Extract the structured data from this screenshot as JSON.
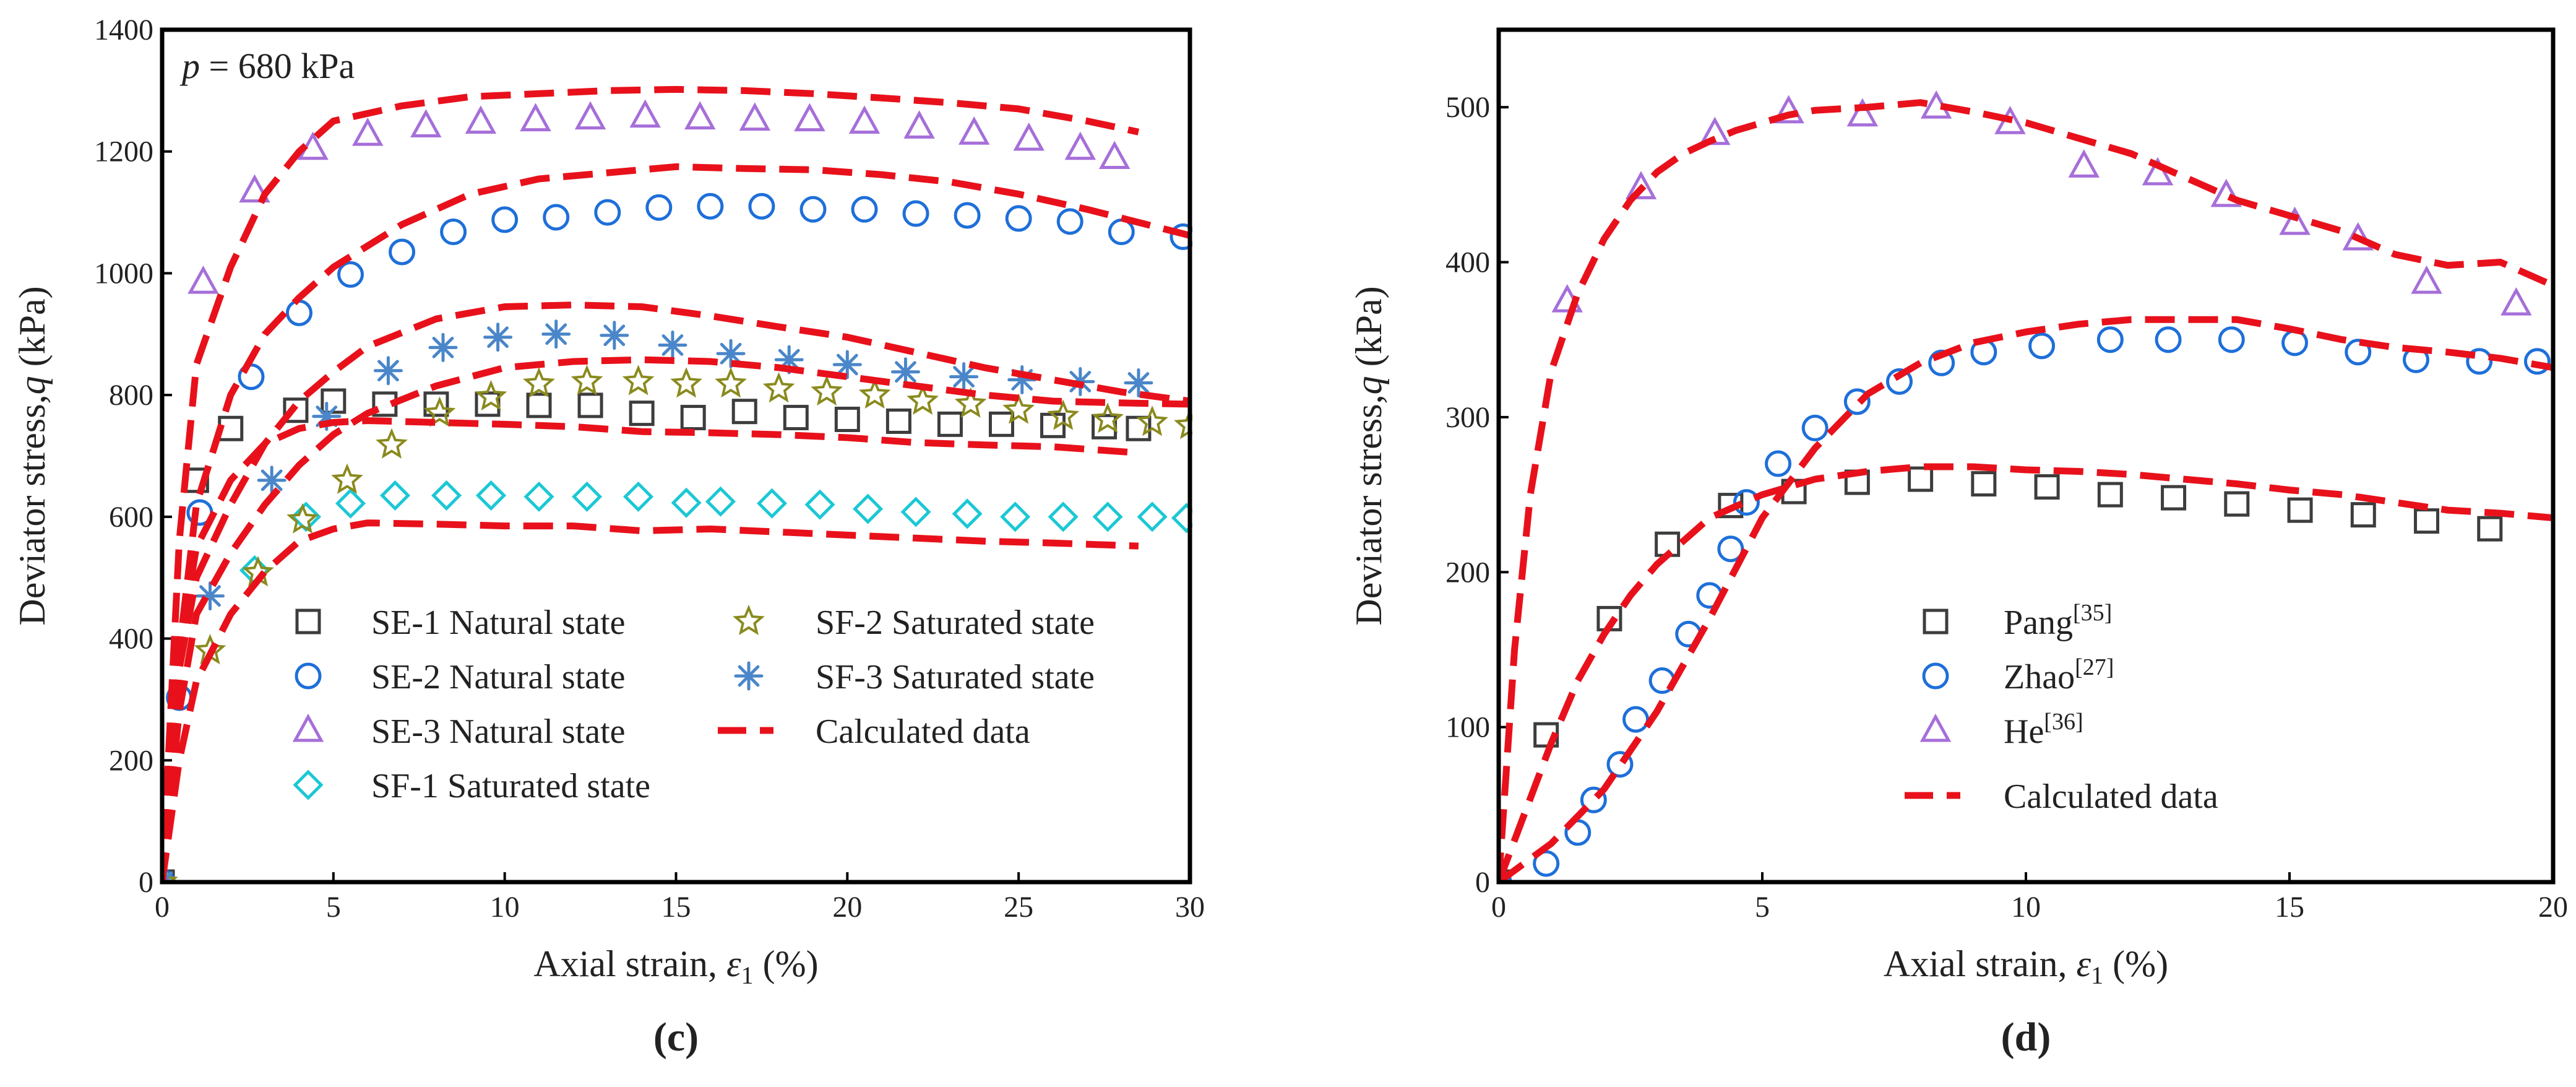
{
  "chart_data": [
    {
      "panel": "c",
      "type": "scatter",
      "panel_label": "(c)",
      "annotation": {
        "italic": "p",
        "text": " = 680 kPa"
      },
      "xlabel": {
        "text": "Axial strain, ",
        "symbol": "ε",
        "sub": "1",
        "unit": " (%)"
      },
      "ylabel": {
        "text": "Deviator stress,",
        "symbol": "q",
        "unit": " (kPa)"
      },
      "xlim": [
        0,
        30
      ],
      "ylim": [
        0,
        1400
      ],
      "xticks": [
        0,
        5,
        10,
        15,
        20,
        25,
        30
      ],
      "yticks": [
        0,
        200,
        400,
        600,
        800,
        1000,
        1200,
        1400
      ],
      "series": [
        {
          "name": "SE-1 Natural state",
          "marker": "square",
          "color": "#3d3d3d",
          "x": [
            0,
            1,
            2,
            3.9,
            5,
            6.5,
            8,
            9.5,
            11,
            12.5,
            14,
            15.5,
            17,
            18.5,
            20,
            21.5,
            23,
            24.5,
            26,
            27.5,
            28.5
          ],
          "y": [
            0,
            660,
            745,
            775,
            790,
            785,
            785,
            785,
            783,
            783,
            770,
            763,
            773,
            763,
            760,
            757,
            752,
            752,
            750,
            748,
            745
          ]
        },
        {
          "name": "SE-2 Natural state",
          "marker": "circle",
          "color": "#1e6fd9",
          "x": [
            0,
            0.5,
            1.1,
            2.6,
            4,
            5.5,
            7,
            8.5,
            10,
            11.5,
            13,
            14.5,
            16,
            17.5,
            19,
            20.5,
            22,
            23.5,
            25,
            26.5,
            28,
            29.8
          ],
          "y": [
            0,
            303,
            607,
            830,
            935,
            998,
            1035,
            1068,
            1088,
            1092,
            1100,
            1108,
            1110,
            1110,
            1105,
            1105,
            1098,
            1095,
            1090,
            1085,
            1068,
            1060
          ]
        },
        {
          "name": "SE-3 Natural state",
          "marker": "triangle",
          "color": "#a66fd9",
          "x": [
            0,
            1.2,
            2.7,
            4.4,
            6,
            7.7,
            9.3,
            10.9,
            12.5,
            14.1,
            15.7,
            17.3,
            18.9,
            20.5,
            22.1,
            23.7,
            25.3,
            26.8,
            27.8
          ],
          "y": [
            0,
            985,
            1135,
            1205,
            1228,
            1242,
            1248,
            1252,
            1255,
            1258,
            1255,
            1253,
            1252,
            1248,
            1240,
            1230,
            1220,
            1205,
            1190
          ]
        },
        {
          "name": "SF-1 Saturated state",
          "marker": "diamond",
          "color": "#1ac8d4",
          "x": [
            0,
            2.7,
            4.2,
            5.5,
            6.8,
            8.3,
            9.6,
            11,
            12.4,
            13.9,
            15.3,
            16.3,
            17.8,
            19.2,
            20.6,
            22,
            23.5,
            24.9,
            26.3,
            27.6,
            28.9,
            29.9
          ],
          "y": [
            0,
            512,
            600,
            622,
            635,
            635,
            635,
            633,
            633,
            633,
            623,
            625,
            622,
            620,
            613,
            608,
            605,
            600,
            600,
            600,
            600,
            598
          ]
        },
        {
          "name": "SF-2 Saturated state",
          "marker": "star",
          "color": "#8a8a1e",
          "x": [
            0,
            1.4,
            2.8,
            4.1,
            5.4,
            6.7,
            8.1,
            9.6,
            11,
            12.4,
            13.9,
            15.3,
            16.6,
            18,
            19.4,
            20.8,
            22.2,
            23.6,
            25,
            26.3,
            27.6,
            28.9,
            30
          ],
          "y": [
            0,
            380,
            508,
            595,
            660,
            718,
            770,
            797,
            818,
            822,
            822,
            818,
            818,
            810,
            805,
            800,
            790,
            785,
            775,
            765,
            760,
            755,
            750
          ]
        },
        {
          "name": "SF-3 Saturated state",
          "marker": "asterisk",
          "color": "#4a86c9",
          "x": [
            0,
            1.4,
            3.2,
            4.8,
            6.6,
            8.2,
            9.8,
            11.5,
            13.2,
            14.9,
            16.6,
            18.3,
            20,
            21.7,
            23.4,
            25.1,
            26.8,
            28.5
          ],
          "y": [
            0,
            470,
            660,
            765,
            840,
            878,
            895,
            900,
            898,
            882,
            868,
            858,
            850,
            838,
            830,
            825,
            822,
            820
          ]
        },
        {
          "name": "Calculated data",
          "type": "line",
          "style": "dashed",
          "color": "#e8111b",
          "curves": [
            {
              "x": [
                0,
                0.5,
                1,
                2,
                3,
                4,
                5,
                7,
                9,
                11,
                13,
                15,
                17,
                19,
                21,
                23,
                25,
                27,
                28.5
              ],
              "y": [
                0,
                560,
                850,
                1010,
                1130,
                1200,
                1250,
                1275,
                1290,
                1295,
                1300,
                1302,
                1300,
                1295,
                1288,
                1280,
                1270,
                1250,
                1232
              ]
            },
            {
              "x": [
                0,
                0.5,
                1,
                2,
                3,
                4,
                5,
                7,
                9,
                11,
                13,
                15,
                17,
                19,
                21,
                23,
                25,
                27,
                30
              ],
              "y": [
                0,
                380,
                620,
                800,
                900,
                960,
                1010,
                1080,
                1130,
                1155,
                1165,
                1175,
                1172,
                1170,
                1162,
                1150,
                1130,
                1105,
                1062
              ]
            },
            {
              "x": [
                0,
                0.5,
                1,
                2,
                3,
                4,
                5,
                6,
                8,
                10,
                12,
                14,
                16,
                18,
                20,
                22,
                24,
                26,
                28,
                30
              ],
              "y": [
                0,
                350,
                500,
                620,
                720,
                790,
                838,
                880,
                925,
                945,
                948,
                945,
                930,
                912,
                895,
                870,
                845,
                825,
                805,
                790
              ]
            },
            {
              "x": [
                0,
                0.5,
                1,
                2,
                3,
                4,
                5,
                6,
                8,
                10,
                12,
                14,
                16,
                18,
                20,
                22,
                24,
                26,
                28,
                30
              ],
              "y": [
                0,
                280,
                440,
                540,
                620,
                685,
                735,
                770,
                815,
                845,
                855,
                858,
                855,
                845,
                830,
                815,
                800,
                790,
                787,
                785
              ]
            },
            {
              "x": [
                0,
                0.5,
                1,
                2,
                3,
                4,
                5,
                6,
                8,
                10,
                12,
                14,
                16,
                18,
                20,
                22,
                24,
                26,
                28.5
              ],
              "y": [
                0,
                380,
                550,
                660,
                720,
                745,
                755,
                758,
                755,
                752,
                748,
                740,
                738,
                735,
                730,
                722,
                718,
                715,
                705
              ]
            },
            {
              "x": [
                0,
                0.5,
                1,
                2,
                3,
                4,
                5,
                6,
                8,
                10,
                12,
                14,
                16,
                18,
                20,
                22,
                24,
                26,
                28.5
              ],
              "y": [
                0,
                200,
                330,
                440,
                510,
                560,
                580,
                590,
                588,
                585,
                585,
                577,
                580,
                575,
                570,
                565,
                560,
                557,
                552
              ]
            }
          ]
        }
      ],
      "legend": {
        "placement": "bottom-center",
        "columns": 2
      }
    },
    {
      "panel": "d",
      "type": "scatter",
      "panel_label": "(d)",
      "xlabel": {
        "text": "Axial strain, ",
        "symbol": "ε",
        "sub": "1",
        "unit": " (%)"
      },
      "ylabel": {
        "text": "Deviator stress,",
        "symbol": "q",
        "unit": " (kPa)"
      },
      "xlim": [
        0,
        20
      ],
      "ylim": [
        0,
        550
      ],
      "xticks": [
        0,
        5,
        10,
        15,
        20
      ],
      "yticks": [
        0,
        100,
        200,
        300,
        400,
        500
      ],
      "series": [
        {
          "name": "Pang",
          "sup": "[35]",
          "marker": "square",
          "color": "#3d3d3d",
          "x": [
            0,
            0.9,
            2.1,
            3.2,
            4.4,
            5.6,
            6.8,
            8,
            9.2,
            10.4,
            11.6,
            12.8,
            14,
            15.2,
            16.4,
            17.6,
            18.8
          ],
          "y": [
            0,
            95,
            170,
            218,
            243,
            252,
            258,
            260,
            257,
            255,
            250,
            248,
            244,
            240,
            237,
            233,
            228
          ]
        },
        {
          "name": "Zhao",
          "sup": "[27]",
          "marker": "circle",
          "color": "#1e6fd9",
          "x": [
            0,
            0.9,
            1.5,
            1.8,
            2.3,
            2.6,
            3.1,
            3.6,
            4.0,
            4.4,
            4.7,
            5.3,
            6.0,
            6.8,
            7.6,
            8.4,
            9.2,
            10.3,
            11.6,
            12.7,
            13.9,
            15.1,
            16.3,
            17.4,
            18.6,
            19.7
          ],
          "y": [
            0,
            12,
            32,
            53,
            76,
            105,
            130,
            160,
            185,
            215,
            245,
            270,
            293,
            310,
            323,
            335,
            342,
            346,
            350,
            350,
            350,
            348,
            342,
            337,
            336,
            336
          ]
        },
        {
          "name": "He",
          "sup": "[36]",
          "marker": "triangle",
          "color": "#a66fd9",
          "x": [
            0,
            1.3,
            2.7,
            4.1,
            5.5,
            6.9,
            8.3,
            9.7,
            11.1,
            12.5,
            13.8,
            15.1,
            16.3,
            17.6,
            19.3
          ],
          "y": [
            0,
            375,
            448,
            483,
            497,
            495,
            500,
            490,
            462,
            457,
            443,
            425,
            415,
            387,
            373
          ]
        },
        {
          "name": "Calculated data",
          "type": "line",
          "style": "dashed",
          "color": "#e8111b",
          "curves": [
            {
              "x": [
                0,
                0.3,
                0.6,
                1,
                1.5,
                2,
                2.5,
                3,
                3.5,
                4,
                4.5,
                5,
                5.5,
                6,
                7,
                8,
                9,
                10,
                11,
                12,
                13,
                14,
                15,
                16,
                17,
                18,
                19,
                20
              ],
              "y": [
                0,
                150,
                250,
                330,
                380,
                415,
                440,
                458,
                470,
                478,
                485,
                490,
                495,
                498,
                500,
                503,
                497,
                490,
                480,
                470,
                455,
                440,
                430,
                420,
                405,
                398,
                400,
                385
              ]
            },
            {
              "x": [
                0,
                1,
                2,
                3,
                4,
                5,
                6,
                7,
                8,
                9,
                10,
                11,
                12,
                13,
                14,
                15,
                16,
                17,
                18,
                19,
                20
              ],
              "y": [
                0,
                25,
                60,
                110,
                170,
                235,
                280,
                315,
                335,
                348,
                355,
                360,
                363,
                363,
                363,
                357,
                350,
                345,
                342,
                338,
                332
              ]
            },
            {
              "x": [
                0,
                0.5,
                1,
                1.5,
                2,
                2.5,
                3,
                4,
                5,
                6,
                7,
                8,
                9,
                10,
                11,
                12,
                13,
                14,
                15,
                16,
                17,
                18,
                19,
                20
              ],
              "y": [
                0,
                45,
                90,
                130,
                160,
                185,
                205,
                235,
                250,
                260,
                265,
                268,
                268,
                266,
                265,
                263,
                260,
                257,
                253,
                250,
                245,
                240,
                238,
                235
              ]
            }
          ]
        }
      ],
      "legend": {
        "placement": "bottom-center",
        "columns": 1
      }
    }
  ]
}
